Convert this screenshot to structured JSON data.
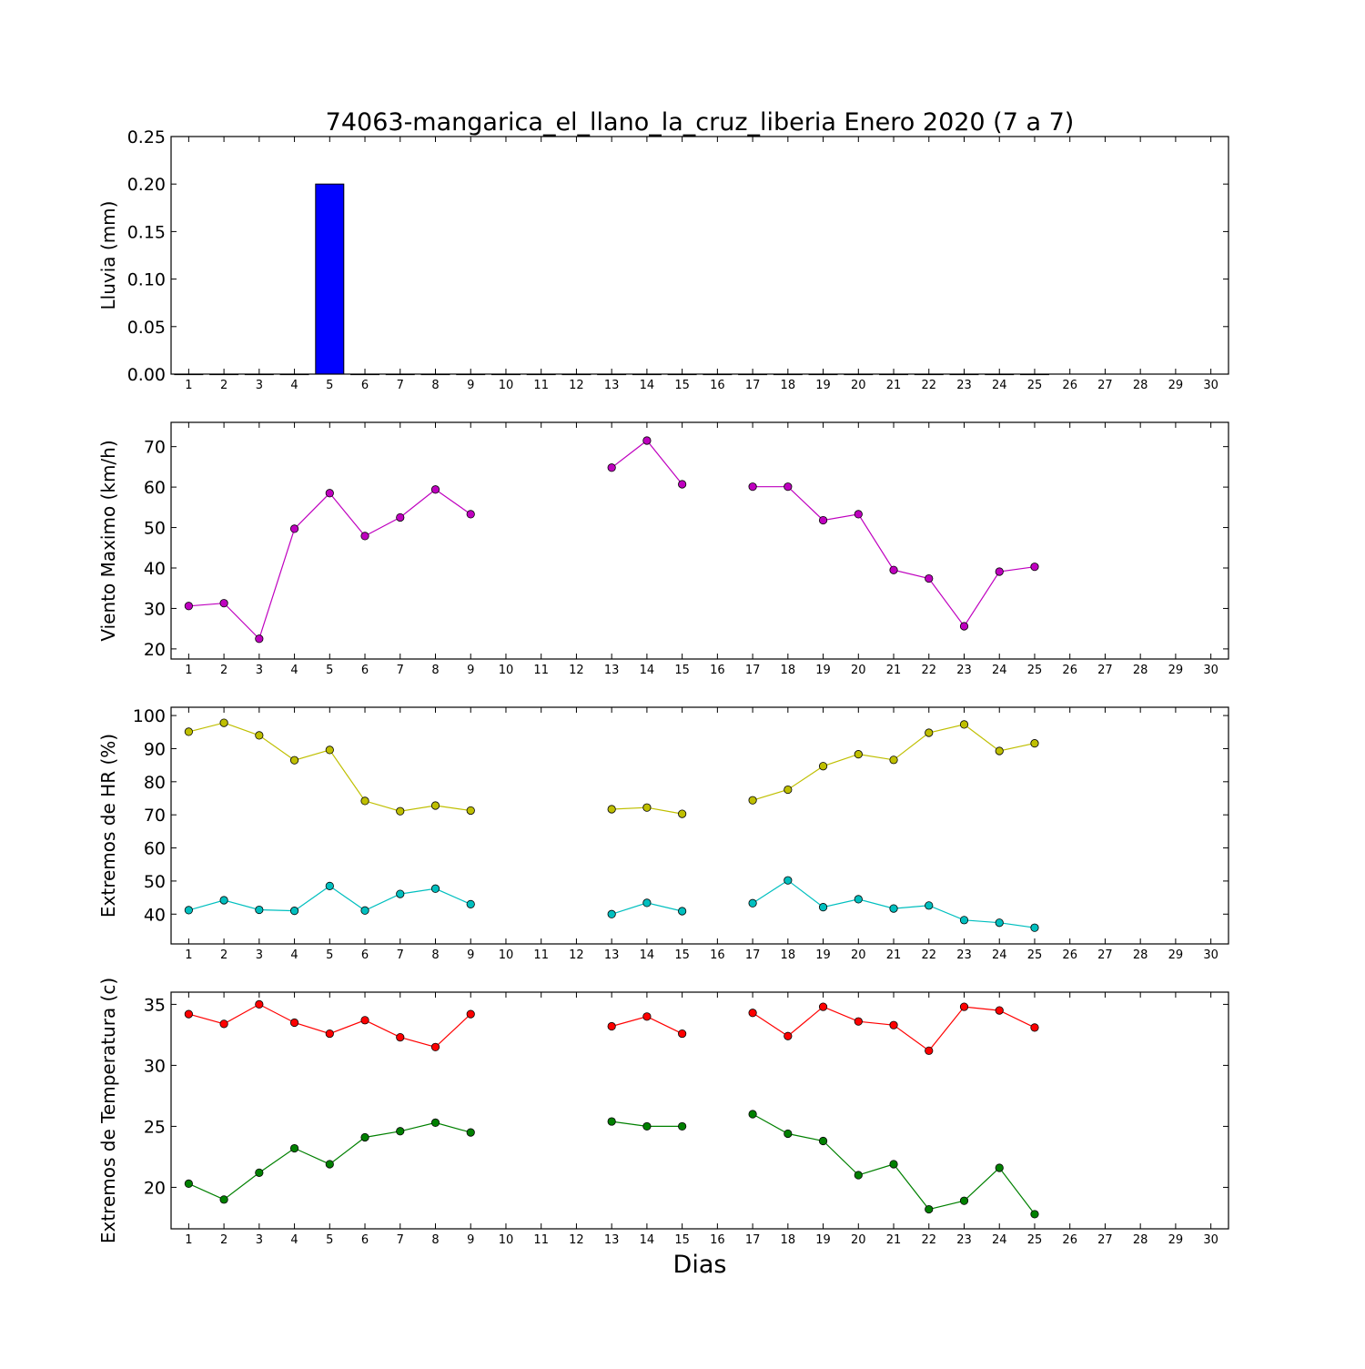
{
  "figure": {
    "title": "74063-mangarica_el_llano_la_cruz_liberia Enero 2020  (7 a 7)",
    "xlabel": "Dias"
  },
  "chart_data": [
    {
      "type": "bar",
      "ylabel": "Lluvia (mm)",
      "xlim": [
        0.5,
        30.5
      ],
      "ylim": [
        0,
        0.25
      ],
      "yticks": [
        0.0,
        0.05,
        0.1,
        0.15,
        0.2,
        0.25
      ],
      "ytick_labels": [
        "0.00",
        "0.05",
        "0.10",
        "0.15",
        "0.20",
        "0.25"
      ],
      "x": [
        1,
        2,
        3,
        4,
        5,
        6,
        7,
        8,
        9,
        10,
        11,
        12,
        13,
        14,
        15,
        16,
        17,
        18,
        19,
        20,
        21,
        22,
        23,
        24,
        25,
        26,
        27,
        28,
        29,
        30
      ],
      "series": [
        {
          "color": "#0000ff",
          "values": [
            0,
            0,
            0,
            0,
            0.2,
            0,
            0,
            0,
            0,
            0,
            0,
            0,
            0,
            0,
            0,
            0,
            0,
            0,
            0,
            0,
            0,
            0,
            0,
            0,
            0,
            null,
            null,
            null,
            null,
            null
          ]
        }
      ],
      "grid": false
    },
    {
      "type": "line",
      "ylabel": "Viento Maximo (km/h)",
      "xlim": [
        0.5,
        30.5
      ],
      "ylim": [
        17.5,
        76
      ],
      "yticks": [
        20,
        30,
        40,
        50,
        60,
        70
      ],
      "ytick_labels": [
        "20",
        "30",
        "40",
        "50",
        "60",
        "70"
      ],
      "x": [
        1,
        2,
        3,
        4,
        5,
        6,
        7,
        8,
        9,
        10,
        11,
        12,
        13,
        14,
        15,
        16,
        17,
        18,
        19,
        20,
        21,
        22,
        23,
        24,
        25,
        26,
        27,
        28,
        29,
        30
      ],
      "series": [
        {
          "color": "#bf00bf",
          "values": [
            30.6,
            31.3,
            22.5,
            49.7,
            58.5,
            47.9,
            52.5,
            59.4,
            53.3,
            null,
            null,
            null,
            64.8,
            71.5,
            60.7,
            null,
            60.1,
            60.1,
            51.8,
            53.3,
            39.5,
            37.4,
            25.6,
            39.1,
            40.3,
            null,
            null,
            null,
            null,
            null
          ]
        }
      ],
      "grid": false
    },
    {
      "type": "line",
      "ylabel": "Extremos de HR (%)",
      "xlim": [
        0.5,
        30.5
      ],
      "ylim": [
        31,
        102.5
      ],
      "yticks": [
        40,
        50,
        60,
        70,
        80,
        90,
        100
      ],
      "ytick_labels": [
        "40",
        "50",
        "60",
        "70",
        "80",
        "90",
        "100"
      ],
      "x": [
        1,
        2,
        3,
        4,
        5,
        6,
        7,
        8,
        9,
        10,
        11,
        12,
        13,
        14,
        15,
        16,
        17,
        18,
        19,
        20,
        21,
        22,
        23,
        24,
        25,
        26,
        27,
        28,
        29,
        30
      ],
      "series": [
        {
          "color": "#bfbf00",
          "values": [
            95.1,
            97.8,
            94.0,
            86.5,
            89.6,
            74.2,
            71.1,
            72.8,
            71.3,
            null,
            null,
            null,
            71.7,
            72.2,
            70.3,
            null,
            74.4,
            77.6,
            84.7,
            88.3,
            86.6,
            94.8,
            97.3,
            89.3,
            91.6,
            null,
            null,
            null,
            null,
            null
          ]
        },
        {
          "color": "#00bfbf",
          "values": [
            41.2,
            44.2,
            41.3,
            41.0,
            48.5,
            41.1,
            46.1,
            47.7,
            43.0,
            null,
            null,
            null,
            40.0,
            43.4,
            40.9,
            null,
            43.3,
            50.2,
            42.1,
            44.5,
            41.7,
            42.6,
            38.2,
            37.4,
            35.9,
            null,
            null,
            null,
            null,
            null
          ]
        }
      ],
      "grid": false
    },
    {
      "type": "line",
      "ylabel": "Extremos de Temperatura (c)",
      "xlim": [
        0.5,
        30.5
      ],
      "ylim": [
        16.6,
        36.0
      ],
      "yticks": [
        20,
        25,
        30,
        35
      ],
      "ytick_labels": [
        "20",
        "25",
        "30",
        "35"
      ],
      "x": [
        1,
        2,
        3,
        4,
        5,
        6,
        7,
        8,
        9,
        10,
        11,
        12,
        13,
        14,
        15,
        16,
        17,
        18,
        19,
        20,
        21,
        22,
        23,
        24,
        25,
        26,
        27,
        28,
        29,
        30
      ],
      "series": [
        {
          "color": "#ff0000",
          "values": [
            34.2,
            33.4,
            35.0,
            33.5,
            32.6,
            33.7,
            32.3,
            31.5,
            34.2,
            null,
            null,
            null,
            33.2,
            34.0,
            32.6,
            null,
            34.3,
            32.4,
            34.8,
            33.6,
            33.3,
            31.2,
            34.8,
            34.5,
            33.1,
            null,
            null,
            null,
            null,
            null
          ]
        },
        {
          "color": "#008000",
          "values": [
            20.3,
            19.0,
            21.2,
            23.2,
            21.9,
            24.1,
            24.6,
            25.3,
            24.5,
            null,
            null,
            null,
            25.4,
            25.0,
            25.0,
            null,
            26.0,
            24.4,
            23.8,
            21.0,
            21.9,
            18.2,
            18.9,
            21.6,
            17.8,
            null,
            null,
            null,
            null,
            null
          ]
        }
      ],
      "grid": false
    }
  ]
}
